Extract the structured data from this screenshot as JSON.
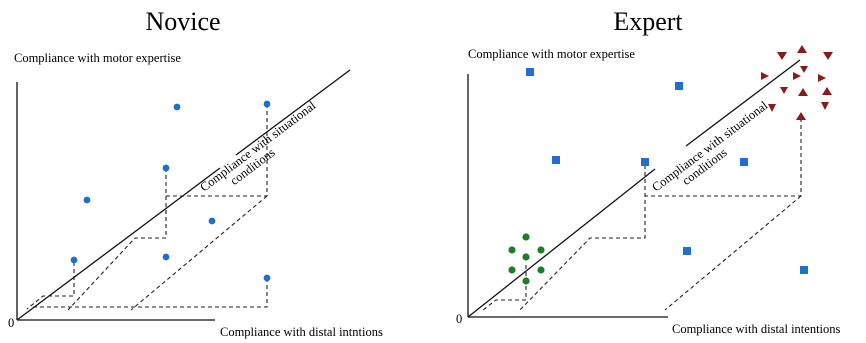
{
  "panels": {
    "novice": {
      "title": "Novice",
      "y_label": "Compliance with motor expertise",
      "diag_label_line1": "Compliance with situational",
      "diag_label_line2": "conditions",
      "x_label": "Compliance with distal intntions",
      "origin_label": "0",
      "marker_color": "#1f6fd0"
    },
    "expert": {
      "title": "Expert",
      "y_label": "Compliance with motor expertise",
      "diag_label_line1": "Compliance with situational",
      "diag_label_line2": "conditions",
      "x_label": "Compliance with distal intentions",
      "origin_label": "0",
      "square_color": "#1f6fd0",
      "circle_color": "#1e7d2a",
      "triangle_color": "#8b1a1a"
    }
  }
}
